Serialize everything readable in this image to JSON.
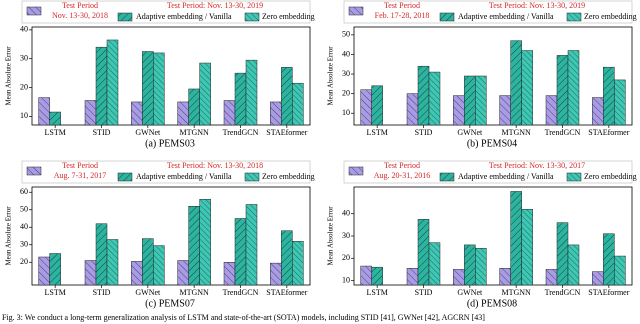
{
  "chart_data": [
    {
      "type": "bar",
      "caption": "(a) PEMS03",
      "y_label": "Mean Absolute Error",
      "legend_heading": "Test Period",
      "legend_title": "Test Period: Nov. 13-30, 2019",
      "categories": [
        "LSTM",
        "STID",
        "GWNet",
        "MTGNN",
        "TrendGCN",
        "STAEformer"
      ],
      "series": [
        {
          "name": "Nov. 13-30, 2018",
          "color": "#a99be8",
          "values": [
            16.5,
            15.5,
            15,
            15,
            15.5,
            15
          ]
        },
        {
          "name": "Adaptive embedding / Vanilla",
          "color": "#2bb5a0",
          "values": [
            11.5,
            34,
            32.5,
            19.5,
            25,
            27
          ]
        },
        {
          "name": "Zero embedding",
          "color": "#3cc8b4",
          "values": [
            null,
            36.5,
            32,
            28.5,
            29.5,
            21.5
          ]
        }
      ],
      "ylim": [
        7,
        41
      ],
      "yticks": [
        10,
        20,
        30,
        40
      ]
    },
    {
      "type": "bar",
      "caption": "(b) PEMS04",
      "y_label": "Mean Absolute Error",
      "legend_heading": "Test Period",
      "legend_title": "Test Period: Nov. 13-30, 2019",
      "categories": [
        "LSTM",
        "STID",
        "GWNet",
        "MTGNN",
        "TrendGCN",
        "STAEformer"
      ],
      "series": [
        {
          "name": "Feb. 17-28, 2018",
          "color": "#a99be8",
          "values": [
            22,
            20,
            19,
            19,
            19,
            18
          ]
        },
        {
          "name": "Adaptive embedding / Vanilla",
          "color": "#2bb5a0",
          "values": [
            24,
            34,
            29,
            47,
            39.5,
            33.5
          ]
        },
        {
          "name": "Zero embedding",
          "color": "#3cc8b4",
          "values": [
            null,
            31,
            29,
            42,
            42,
            27
          ]
        }
      ],
      "ylim": [
        4,
        54
      ],
      "yticks": [
        10,
        20,
        30,
        40,
        50
      ]
    },
    {
      "type": "bar",
      "caption": "(c) PEMS07",
      "y_label": "Mean Absolute Error",
      "legend_heading": "Test Period",
      "legend_title": "Test Period: Nov. 13-30, 2018",
      "categories": [
        "LSTM",
        "STID",
        "GWNet",
        "MTGNN",
        "TrendGCN",
        "STAEformer"
      ],
      "series": [
        {
          "name": "Aug. 7-31, 2017",
          "color": "#a99be8",
          "values": [
            23,
            21,
            20.5,
            21,
            20,
            19.5
          ]
        },
        {
          "name": "Adaptive embedding / Vanilla",
          "color": "#2bb5a0",
          "values": [
            25,
            42,
            33.5,
            52,
            45,
            38
          ]
        },
        {
          "name": "Zero embedding",
          "color": "#3cc8b4",
          "values": [
            null,
            33,
            29.5,
            56,
            53,
            32
          ]
        }
      ],
      "ylim": [
        7,
        63
      ],
      "yticks": [
        20,
        30,
        40,
        50,
        60
      ]
    },
    {
      "type": "bar",
      "caption": "(d) PEMS08",
      "y_label": "Mean Absolute Error",
      "legend_heading": "Test Period",
      "legend_title": "Test Period: Nov. 13-30, 2017",
      "categories": [
        "LSTM",
        "STID",
        "GWNet",
        "MTGNN",
        "TrendGCN",
        "STAEformer"
      ],
      "series": [
        {
          "name": "Aug. 20-31, 2016",
          "color": "#a99be8",
          "values": [
            16.5,
            15.5,
            15,
            15.5,
            15,
            14
          ]
        },
        {
          "name": "Adaptive embedding / Vanilla",
          "color": "#2bb5a0",
          "values": [
            16,
            37.5,
            26,
            50,
            36,
            31
          ]
        },
        {
          "name": "Zero embedding",
          "color": "#3cc8b4",
          "values": [
            null,
            27,
            24.5,
            42,
            26,
            21
          ]
        }
      ],
      "ylim": [
        8,
        52
      ],
      "yticks": [
        10,
        20,
        30,
        40
      ]
    }
  ],
  "figure_caption": "Fig. 3: We conduct a long-term generalization analysis of LSTM and state-of-the-art (SOTA) models, including STID [41], GWNet [42], AGCRN [43]"
}
